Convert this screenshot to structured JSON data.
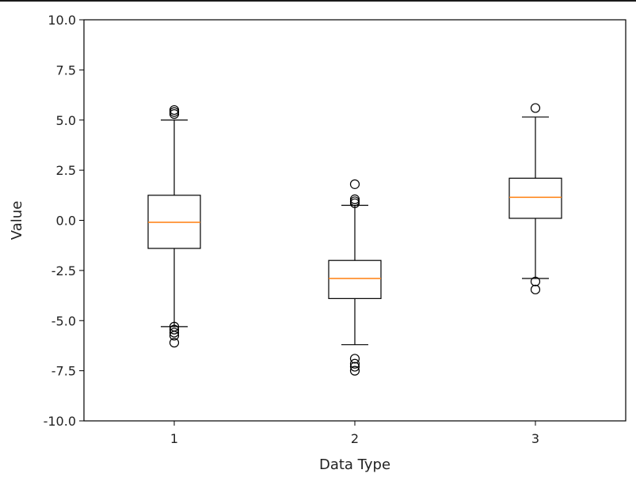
{
  "chart_data": {
    "type": "box",
    "xlabel": "Data Type",
    "ylabel": "Value",
    "ylim": [
      -10,
      10
    ],
    "yticks": [
      10.0,
      7.5,
      5.0,
      2.5,
      0.0,
      -2.5,
      -5.0,
      -7.5,
      -10.0
    ],
    "ytick_labels": [
      "10.0",
      "7.5",
      "5.0",
      "2.5",
      "0.0",
      "-2.5",
      "-5.0",
      "-7.5",
      "-10.0"
    ],
    "categories": [
      "1",
      "2",
      "3"
    ],
    "xlim": [
      0.5,
      3.5
    ],
    "grid": false,
    "colors": {
      "median": "#ff7f0e",
      "box": "#000000",
      "outlier": "#000000"
    },
    "boxes": [
      {
        "category": "1",
        "whisker_low": -5.3,
        "q1": -1.4,
        "median": -0.1,
        "q3": 1.25,
        "whisker_high": 5.0,
        "outliers": [
          5.5,
          5.4,
          5.3,
          -5.3,
          -5.45,
          -5.6,
          -5.75,
          -6.1
        ]
      },
      {
        "category": "2",
        "whisker_low": -6.2,
        "q1": -3.9,
        "median": -2.9,
        "q3": -2.0,
        "whisker_high": 0.75,
        "outliers": [
          1.8,
          1.05,
          0.95,
          0.85,
          -6.9,
          -7.15,
          -7.3,
          -7.5
        ]
      },
      {
        "category": "3",
        "whisker_low": -2.9,
        "q1": 0.1,
        "median": 1.15,
        "q3": 2.1,
        "whisker_high": 5.15,
        "outliers": [
          5.6,
          -3.05,
          -3.45
        ]
      }
    ]
  }
}
